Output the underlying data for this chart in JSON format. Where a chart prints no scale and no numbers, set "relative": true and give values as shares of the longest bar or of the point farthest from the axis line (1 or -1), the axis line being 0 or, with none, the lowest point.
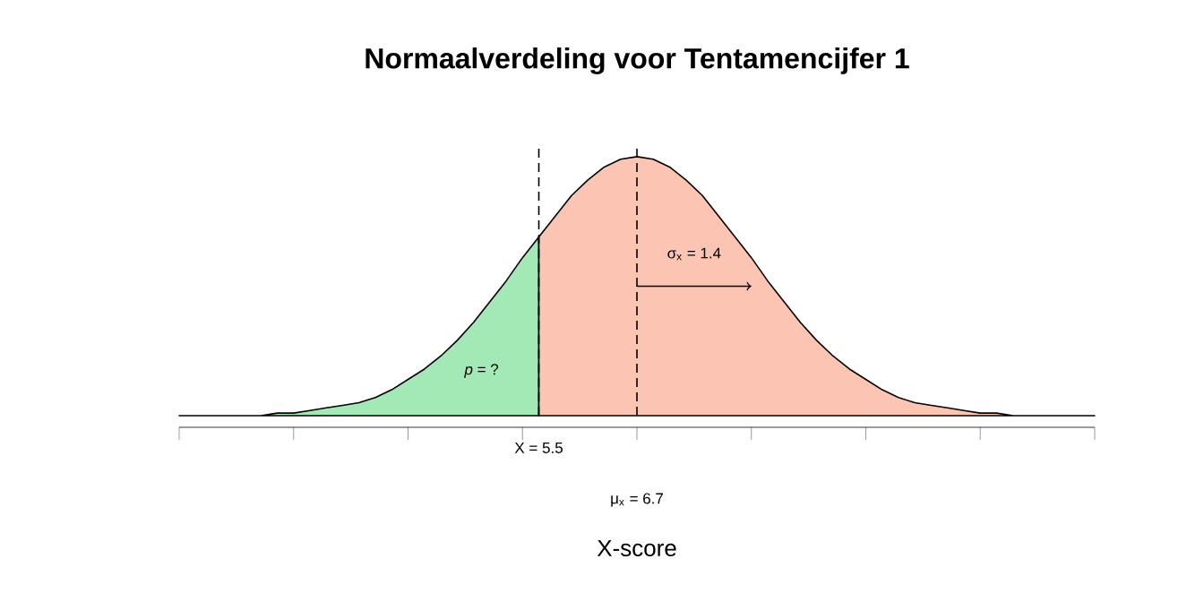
{
  "chart_data": {
    "type": "area",
    "title": "Normaalverdeling voor Tentamencijfer 1",
    "relative": true,
    "categories": [
      null,
      null,
      null,
      null,
      null,
      null,
      null,
      null,
      null,
      null,
      null,
      null,
      null,
      null,
      null,
      null,
      null,
      null,
      null,
      null,
      null,
      null,
      null,
      null,
      null,
      null,
      null,
      null,
      null,
      null,
      null,
      null,
      null,
      null,
      null,
      null,
      null,
      null,
      null,
      null,
      null,
      null,
      null,
      null,
      null,
      null,
      null,
      null,
      null,
      null,
      null,
      null,
      null,
      null,
      null,
      null,
      null
    ],
    "series": [
      {
        "color": "#a3e9b5",
        "values": [
          0,
          0,
          0,
          0,
          0,
          0,
          0.01,
          0.01,
          0.02,
          0.03,
          0.04,
          0.05,
          0.07,
          0.1,
          0.14,
          0.18,
          0.23,
          0.29,
          0.36,
          0.44,
          0.52,
          0.61,
          0.69,
          null,
          null,
          null,
          null,
          null,
          null,
          null,
          null,
          null,
          null,
          null,
          null,
          null,
          null,
          null,
          null,
          null,
          null,
          null,
          null,
          null,
          null,
          null,
          null,
          null,
          null,
          null,
          null,
          null,
          null,
          null,
          null,
          null,
          null
        ]
      },
      {
        "color": "#fcc5b3",
        "values": [
          null,
          null,
          null,
          null,
          null,
          null,
          null,
          null,
          null,
          null,
          null,
          null,
          null,
          null,
          null,
          null,
          null,
          null,
          null,
          null,
          null,
          null,
          0.69,
          0.77,
          0.85,
          0.91,
          0.96,
          0.99,
          1,
          0.99,
          0.96,
          0.91,
          0.85,
          0.77,
          0.69,
          0.61,
          0.52,
          0.44,
          0.36,
          0.29,
          0.23,
          0.18,
          0.14,
          0.1,
          0.07,
          0.05,
          0.04,
          0.03,
          0.02,
          0.01,
          0.01,
          0,
          0,
          0,
          0,
          0,
          0
        ]
      }
    ],
    "annotations": [
      "σ$_{x}$ = 1.4",
      "*p* = ?",
      "X = 5.5",
      "μ$_{x}$ = 6.7",
      "X-score"
    ]
  }
}
